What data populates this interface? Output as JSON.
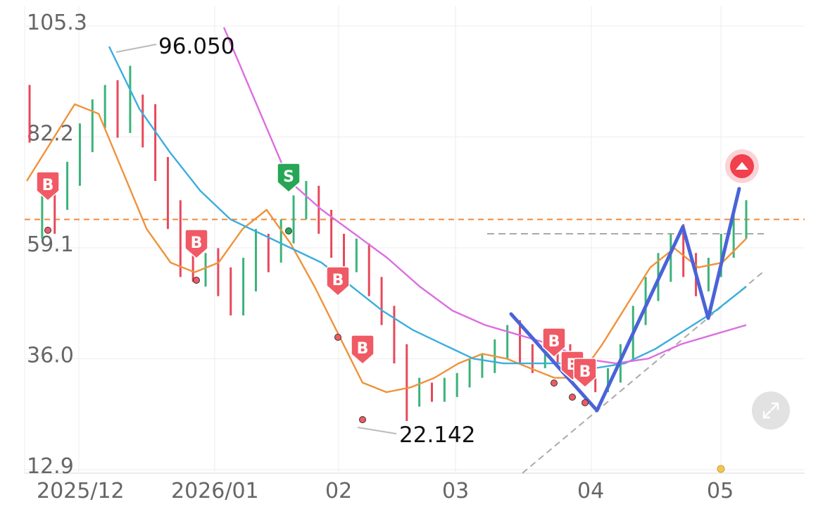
{
  "chart_data": {
    "type": "candlestick",
    "y_axis": {
      "ticks": [
        "105.3",
        "82.2",
        "59.1",
        "36.0",
        "12.9"
      ],
      "tick_values": [
        105.3,
        82.2,
        59.1,
        36.0,
        12.9
      ],
      "ylim": [
        12.9,
        105.3
      ]
    },
    "x_axis": {
      "ticks": [
        "2025/12",
        "2026/01",
        "02",
        "03",
        "04",
        "05"
      ]
    },
    "grid": true,
    "annotations": {
      "high_label": "96.050",
      "high_value": 96.05,
      "low_label": "22.142",
      "low_value": 22.142
    },
    "horizontal_levels": [
      {
        "value": 64.0,
        "style": "dashed",
        "color": "#f08a3c"
      },
      {
        "value": 61.0,
        "style": "dashed",
        "color": "#aaaaaa"
      }
    ],
    "candles": [
      [
        77,
        64,
        92,
        80
      ],
      [
        64,
        70,
        72,
        60
      ],
      [
        70,
        67,
        74,
        61
      ],
      [
        67,
        73,
        76,
        66
      ],
      [
        73,
        80,
        84,
        71
      ],
      [
        80,
        85,
        89,
        78
      ],
      [
        85,
        89,
        92,
        83
      ],
      [
        89,
        84,
        93,
        81
      ],
      [
        84,
        88,
        96,
        82
      ],
      [
        88,
        85,
        90,
        79
      ],
      [
        85,
        75,
        88,
        72
      ],
      [
        75,
        66,
        77,
        62
      ],
      [
        66,
        57,
        68,
        52
      ],
      [
        57,
        53,
        61,
        51
      ],
      [
        53,
        55,
        57,
        50
      ],
      [
        55,
        51,
        58,
        48
      ],
      [
        51,
        46,
        54,
        44
      ],
      [
        46,
        52,
        56,
        44
      ],
      [
        52,
        58,
        62,
        49
      ],
      [
        58,
        56,
        61,
        53
      ],
      [
        56,
        61,
        64,
        55
      ],
      [
        61,
        66,
        69,
        59
      ],
      [
        66,
        69,
        72,
        64
      ],
      [
        69,
        63,
        71,
        61
      ],
      [
        63,
        58,
        66,
        56
      ],
      [
        58,
        55,
        61,
        52
      ],
      [
        55,
        57,
        60,
        53
      ],
      [
        57,
        50,
        59,
        48
      ],
      [
        50,
        44,
        52,
        42
      ],
      [
        44,
        36,
        46,
        34
      ],
      [
        36,
        27,
        38,
        22
      ],
      [
        27,
        28,
        31,
        25
      ],
      [
        28,
        27,
        30,
        26
      ],
      [
        27,
        28,
        31,
        26
      ],
      [
        28,
        30,
        32,
        27
      ],
      [
        30,
        32,
        35,
        29
      ],
      [
        32,
        34,
        36,
        31
      ],
      [
        34,
        37,
        39,
        32
      ],
      [
        37,
        40,
        42,
        35
      ],
      [
        40,
        36,
        43,
        34
      ],
      [
        36,
        34,
        38,
        32
      ],
      [
        34,
        37,
        39,
        33
      ],
      [
        37,
        36,
        39,
        34
      ],
      [
        36,
        34,
        38,
        32
      ],
      [
        34,
        32,
        36,
        30
      ],
      [
        32,
        29,
        34,
        28
      ],
      [
        29,
        31,
        33,
        28
      ],
      [
        31,
        36,
        38,
        30
      ],
      [
        36,
        43,
        46,
        35
      ],
      [
        43,
        49,
        52,
        42
      ],
      [
        49,
        53,
        57,
        47
      ],
      [
        53,
        58,
        61,
        51
      ],
      [
        58,
        55,
        63,
        52
      ],
      [
        55,
        50,
        57,
        48
      ],
      [
        50,
        54,
        56,
        49
      ],
      [
        54,
        58,
        61,
        52
      ],
      [
        58,
        62,
        65,
        56
      ],
      [
        62,
        67,
        68,
        60
      ]
    ],
    "series": [
      {
        "color": "#f0923a",
        "values": [
          72,
          80,
          88,
          86,
          74,
          62,
          55,
          53,
          55,
          62,
          66,
          59,
          50,
          40,
          30,
          28,
          29,
          31,
          34,
          36,
          35,
          33,
          31,
          31,
          38,
          46,
          54,
          58,
          54,
          55,
          60
        ]
      },
      {
        "color": "#3aaedc",
        "values": [
          100,
          87,
          78,
          70,
          64,
          61,
          58,
          55,
          50,
          45,
          41,
          38,
          35,
          34,
          34,
          34,
          33,
          34,
          37,
          41,
          45,
          50
        ]
      },
      {
        "color": "#dc6ee0",
        "values": [
          104,
          88,
          72,
          66,
          61,
          56,
          50,
          45,
          42,
          40,
          38,
          35,
          34,
          35,
          38,
          40,
          42
        ]
      }
    ]
  },
  "markers": [
    {
      "type": "B",
      "label": "B"
    },
    {
      "type": "B",
      "label": "B"
    },
    {
      "type": "S",
      "label": "S"
    },
    {
      "type": "B",
      "label": "B"
    },
    {
      "type": "B",
      "label": "B"
    },
    {
      "type": "B",
      "label": "B"
    },
    {
      "type": "B",
      "label": "B"
    },
    {
      "type": "B",
      "label": "B"
    }
  ],
  "colors": {
    "up": "#3bb37a",
    "down": "#e8485a",
    "buy": "#f05a64",
    "sell": "#27a655",
    "pattern": "#4a63d8"
  }
}
